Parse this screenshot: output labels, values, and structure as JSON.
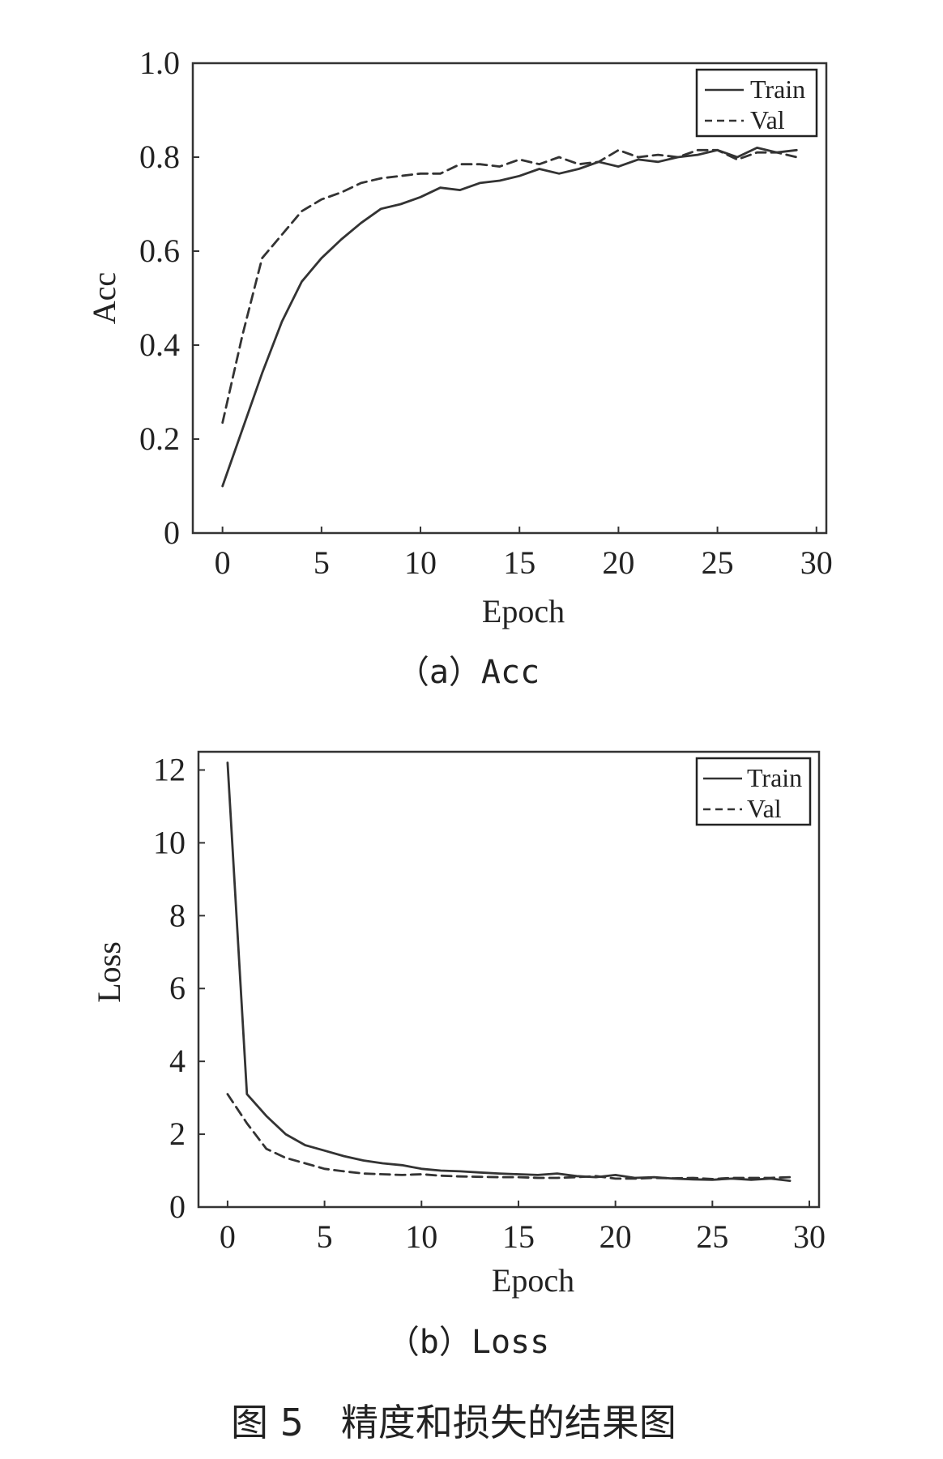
{
  "chart_data": [
    {
      "type": "line",
      "xlabel": "Epoch",
      "ylabel": "Acc",
      "xlim": [
        -1.5,
        30.5
      ],
      "ylim": [
        0,
        1.0
      ],
      "xticks": [
        0,
        5,
        10,
        15,
        20,
        25,
        30
      ],
      "yticks": [
        0,
        0.2,
        0.4,
        0.6,
        0.8,
        1.0
      ],
      "xtick_labels": [
        "0",
        "5",
        "10",
        "15",
        "20",
        "25",
        "30"
      ],
      "ytick_labels": [
        "0",
        "0.2",
        "0.4",
        "0.6",
        "0.8",
        "1.0"
      ],
      "legend": "top-right",
      "grid": false,
      "caption": "（a）Acc",
      "x": [
        0,
        1,
        2,
        3,
        4,
        5,
        6,
        7,
        8,
        9,
        10,
        11,
        12,
        13,
        14,
        15,
        16,
        17,
        18,
        19,
        20,
        21,
        22,
        23,
        24,
        25,
        26,
        27,
        28,
        29
      ],
      "series": [
        {
          "name": "Train",
          "style": "solid",
          "values": [
            0.1,
            0.22,
            0.34,
            0.45,
            0.535,
            0.585,
            0.625,
            0.66,
            0.69,
            0.7,
            0.715,
            0.735,
            0.73,
            0.745,
            0.75,
            0.76,
            0.775,
            0.765,
            0.775,
            0.79,
            0.78,
            0.795,
            0.79,
            0.8,
            0.805,
            0.815,
            0.8,
            0.82,
            0.81,
            0.815
          ]
        },
        {
          "name": "Val",
          "style": "dashed",
          "values": [
            0.235,
            0.42,
            0.585,
            0.635,
            0.685,
            0.71,
            0.725,
            0.745,
            0.755,
            0.76,
            0.765,
            0.765,
            0.785,
            0.785,
            0.78,
            0.795,
            0.785,
            0.8,
            0.785,
            0.79,
            0.815,
            0.8,
            0.805,
            0.8,
            0.815,
            0.815,
            0.795,
            0.81,
            0.81,
            0.8
          ]
        }
      ]
    },
    {
      "type": "line",
      "xlabel": "Epoch",
      "ylabel": "Loss",
      "xlim": [
        -1.5,
        30.5
      ],
      "ylim": [
        0,
        12.5
      ],
      "xticks": [
        0,
        5,
        10,
        15,
        20,
        25,
        30
      ],
      "yticks": [
        0,
        2,
        4,
        6,
        8,
        10,
        12
      ],
      "xtick_labels": [
        "0",
        "5",
        "10",
        "15",
        "20",
        "25",
        "30"
      ],
      "ytick_labels": [
        "0",
        "2",
        "4",
        "6",
        "8",
        "10",
        "12"
      ],
      "legend": "top-right",
      "grid": false,
      "caption": "（b）Loss",
      "x": [
        0,
        1,
        2,
        3,
        4,
        5,
        6,
        7,
        8,
        9,
        10,
        11,
        12,
        13,
        14,
        15,
        16,
        17,
        18,
        19,
        20,
        21,
        22,
        23,
        24,
        25,
        26,
        27,
        28,
        29
      ],
      "series": [
        {
          "name": "Train",
          "style": "solid",
          "values": [
            12.2,
            3.1,
            2.5,
            2.0,
            1.7,
            1.55,
            1.4,
            1.28,
            1.2,
            1.15,
            1.05,
            1.0,
            0.98,
            0.95,
            0.92,
            0.9,
            0.88,
            0.92,
            0.85,
            0.82,
            0.88,
            0.8,
            0.82,
            0.78,
            0.76,
            0.75,
            0.78,
            0.75,
            0.78,
            0.72
          ]
        },
        {
          "name": "Val",
          "style": "dashed",
          "values": [
            3.1,
            2.3,
            1.6,
            1.35,
            1.2,
            1.05,
            0.98,
            0.92,
            0.9,
            0.88,
            0.9,
            0.86,
            0.84,
            0.83,
            0.82,
            0.82,
            0.8,
            0.8,
            0.82,
            0.85,
            0.78,
            0.78,
            0.8,
            0.79,
            0.8,
            0.77,
            0.8,
            0.8,
            0.8,
            0.82
          ]
        }
      ]
    }
  ],
  "figure_caption": "图 5　精度和损失的结果图"
}
